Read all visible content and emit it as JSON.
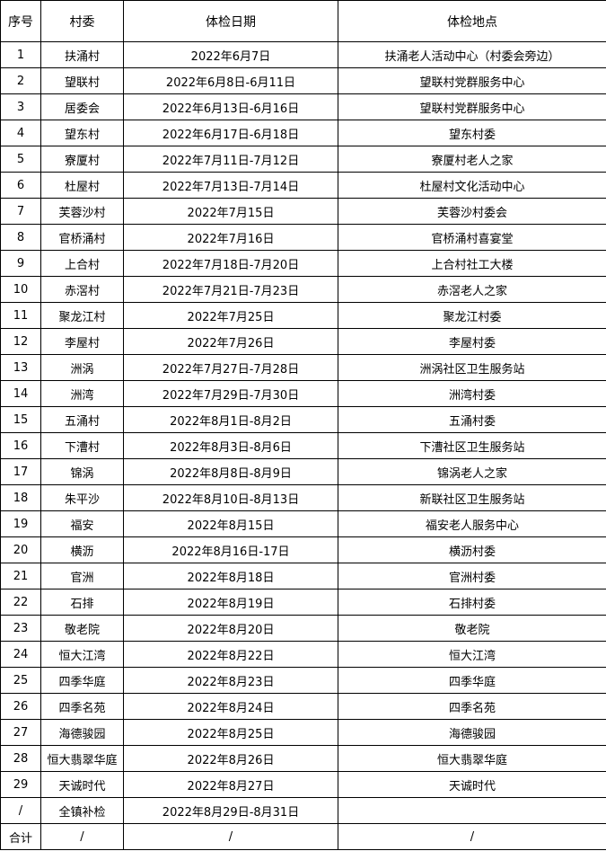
{
  "headers": [
    "序号",
    "村委",
    "体检日期",
    "体检地点"
  ],
  "rows": [
    [
      "1",
      "扶涌村",
      "2022年6月7日",
      "扶涌老人活动中心（村委会旁边）"
    ],
    [
      "2",
      "望联村",
      "2022年6月8日-6月11日",
      "望联村党群服务中心"
    ],
    [
      "3",
      "居委会",
      "2022年6月13日-6月16日",
      "望联村党群服务中心"
    ],
    [
      "4",
      "望东村",
      "2022年6月17日-6月18日",
      "望东村委"
    ],
    [
      "5",
      "寮厦村",
      "2022年7月11日-7月12日",
      "寮厦村老人之家"
    ],
    [
      "6",
      "杜屋村",
      "2022年7月13日-7月14日",
      "杜屋村文化活动中心"
    ],
    [
      "7",
      "芙蓉沙村",
      "2022年7月15日",
      "芙蓉沙村委会"
    ],
    [
      "8",
      "官桥涌村",
      "2022年7月16日",
      "官桥涌村喜宴堂"
    ],
    [
      "9",
      "上合村",
      "2022年7月18日-7月20日",
      "上合村社工大楼"
    ],
    [
      "10",
      "赤滘村",
      "2022年7月21日-7月23日",
      "赤滘老人之家"
    ],
    [
      "11",
      "聚龙江村",
      "2022年7月25日",
      "聚龙江村委"
    ],
    [
      "12",
      "李屋村",
      "2022年7月26日",
      "李屋村委"
    ],
    [
      "13",
      "洲涡",
      "2022年7月27日-7月28日",
      "洲涡社区卫生服务站"
    ],
    [
      "14",
      "洲湾",
      "2022年7月29日-7月30日",
      "洲湾村委"
    ],
    [
      "15",
      "五涌村",
      "2022年8月1日-8月2日",
      "五涌村委"
    ],
    [
      "16",
      "下漕村",
      "2022年8月3日-8月6日",
      "下漕社区卫生服务站"
    ],
    [
      "17",
      "锦涡",
      "2022年8月8日-8月9日",
      "锦涡老人之家"
    ],
    [
      "18",
      "朱平沙",
      "2022年8月10日-8月13日",
      "新联社区卫生服务站"
    ],
    [
      "19",
      "福安",
      "2022年8月15日",
      "福安老人服务中心"
    ],
    [
      "20",
      "横沥",
      "2022年8月16日-17日",
      "横沥村委"
    ],
    [
      "21",
      "官洲",
      "2022年8月18日",
      "官洲村委"
    ],
    [
      "22",
      "石排",
      "2022年8月19日",
      "石排村委"
    ],
    [
      "23",
      "敬老院",
      "2022年8月20日",
      "敬老院"
    ],
    [
      "24",
      "恒大江湾",
      "2022年8月22日",
      "恒大江湾"
    ],
    [
      "25",
      "四季华庭",
      "2022年8月23日",
      "四季华庭"
    ],
    [
      "26",
      "四季名苑",
      "2022年8月24日",
      "四季名苑"
    ],
    [
      "27",
      "海德骏园",
      "2022年8月25日",
      "海德骏园"
    ],
    [
      "28",
      "恒大翡翠华庭",
      "2022年8月26日",
      "恒大翡翠华庭"
    ],
    [
      "29",
      "天诚时代",
      "2022年8月27日",
      "天诚时代"
    ],
    [
      "/",
      "全镇补检",
      "2022年8月29日-8月31日",
      ""
    ],
    [
      "合计",
      "/",
      "/",
      "/"
    ]
  ]
}
